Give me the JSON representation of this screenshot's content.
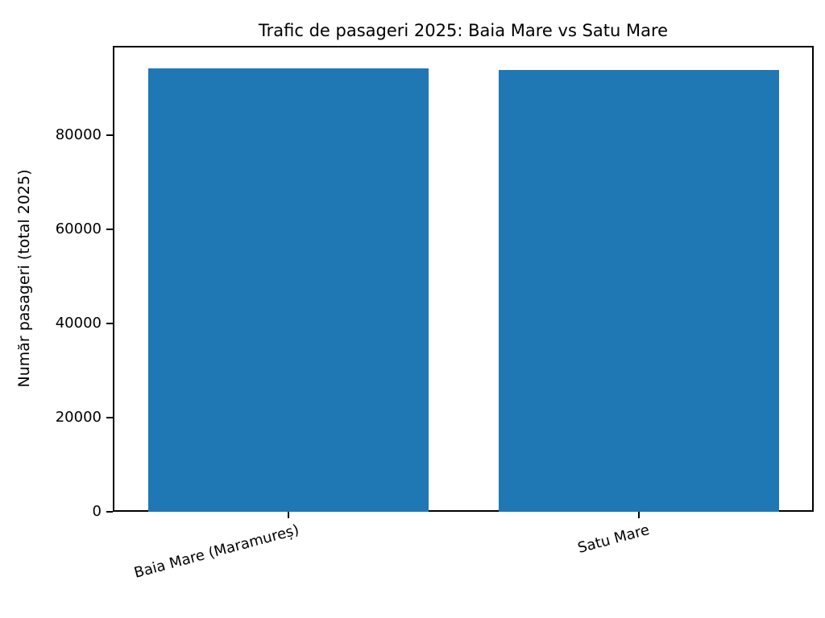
{
  "title": "Trafic de pasageri 2025: Baia Mare vs Satu Mare",
  "chart_data": {
    "type": "bar",
    "title": "Trafic de pasageri 2025: Baia Mare vs Satu Mare",
    "categories": [
      "Baia Mare (Maramureș)",
      "Satu Mare"
    ],
    "values": [
      94200,
      93900
    ],
    "xlabel": "",
    "ylabel": "Număr pasageri (total 2025)",
    "ylim": [
      0,
      99000
    ],
    "yticks": [
      0,
      20000,
      40000,
      60000,
      80000
    ],
    "bar_color": "#1f77b4",
    "background": "#ffffff",
    "grid": false,
    "legend_position": "none"
  }
}
